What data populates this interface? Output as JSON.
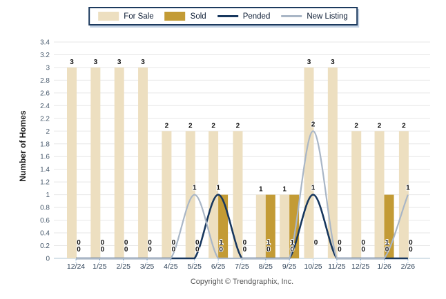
{
  "legend": {
    "items": [
      {
        "label": "For Sale",
        "type": "bar",
        "color": "#EDDFC0"
      },
      {
        "label": "Sold",
        "type": "bar",
        "color": "#C39B35"
      },
      {
        "label": "Pended",
        "type": "line",
        "color": "#17375E"
      },
      {
        "label": "New Listing",
        "type": "line",
        "color": "#A9B6C6"
      }
    ]
  },
  "chart_data": {
    "type": "bar",
    "subtype": "grouped-bars-with-spline-lines",
    "categories": [
      "12/24",
      "1/25",
      "2/25",
      "3/25",
      "4/25",
      "5/25",
      "6/25",
      "7/25",
      "8/25",
      "9/25",
      "10/25",
      "11/25",
      "12/25",
      "1/26",
      "2/26"
    ],
    "series": [
      {
        "name": "For Sale",
        "type": "bar",
        "color": "#EDDFC0",
        "values": [
          3,
          3,
          3,
          3,
          2,
          2,
          2,
          2,
          1,
          1,
          3,
          3,
          2,
          2,
          2
        ]
      },
      {
        "name": "Sold",
        "type": "bar",
        "color": "#C39B35",
        "values": [
          0,
          0,
          0,
          0,
          0,
          0,
          1,
          0,
          1,
          1,
          0,
          0,
          0,
          1,
          0
        ]
      },
      {
        "name": "Pended",
        "type": "line",
        "color": "#17375E",
        "values": [
          0,
          0,
          0,
          0,
          0,
          0,
          1,
          0,
          0,
          0,
          1,
          0,
          0,
          0,
          0
        ]
      },
      {
        "name": "New Listing",
        "type": "line",
        "color": "#A9B6C6",
        "values": [
          0,
          0,
          0,
          0,
          0,
          1,
          0,
          0,
          0,
          0,
          2,
          0,
          0,
          0,
          1
        ]
      }
    ],
    "title": "",
    "xlabel": "",
    "ylabel": "Number of Homes",
    "ylim": [
      0,
      3.4
    ],
    "ytick_step": 0.2,
    "grid": true,
    "legend_position": "top"
  },
  "footer": {
    "copyright": "Copyright © Trendgraphix, Inc."
  },
  "colors": {
    "gridline": "#E7E7E7",
    "baseline": "#BFD0DC",
    "category_tick": "#5E96C8",
    "y_tick_label": "#46586B",
    "x_tick_label": "#2E4258",
    "data_label": "#111111",
    "legend_border": "#1C3A5E",
    "legend_shadow": "#C3D2E4",
    "copyright_text": "#545454"
  }
}
